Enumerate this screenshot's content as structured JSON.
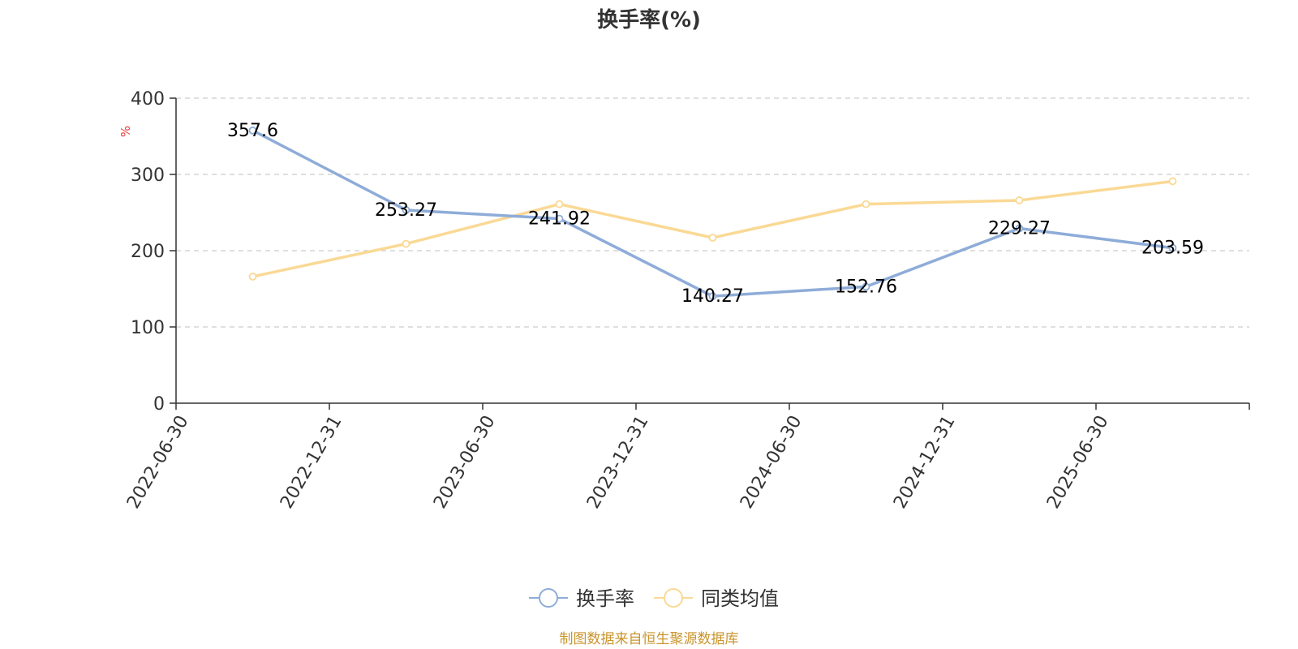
{
  "chart_data": {
    "type": "line",
    "title": "换手率(%)",
    "ylabel": "%",
    "xlabel": "",
    "categories": [
      "2022-06-30",
      "2022-12-31",
      "2023-06-30",
      "2023-12-31",
      "2024-06-30",
      "2024-12-31",
      "2025-06-30"
    ],
    "ylim": [
      0,
      400
    ],
    "yticks": [
      0,
      100,
      200,
      300,
      400
    ],
    "grid": "horizontal-dashed",
    "legend_position": "bottom-center",
    "series": [
      {
        "name": "换手率",
        "color": "#8eacd8",
        "values": [
          357.6,
          253.27,
          241.92,
          140.27,
          152.76,
          229.27,
          203.59
        ],
        "labels": [
          "357.6",
          "253.27",
          "241.92",
          "140.27",
          "152.76",
          "229.27",
          "203.59"
        ]
      },
      {
        "name": "同类均值",
        "color": "#fad995",
        "values": [
          166,
          209,
          261,
          217,
          261,
          266,
          291
        ]
      }
    ]
  },
  "source_note": "制图数据来自恒生聚源数据库",
  "colors": {
    "axis": "#333333",
    "grid": "#cccccc",
    "unit": "#e53935",
    "source": "#c9952c"
  }
}
